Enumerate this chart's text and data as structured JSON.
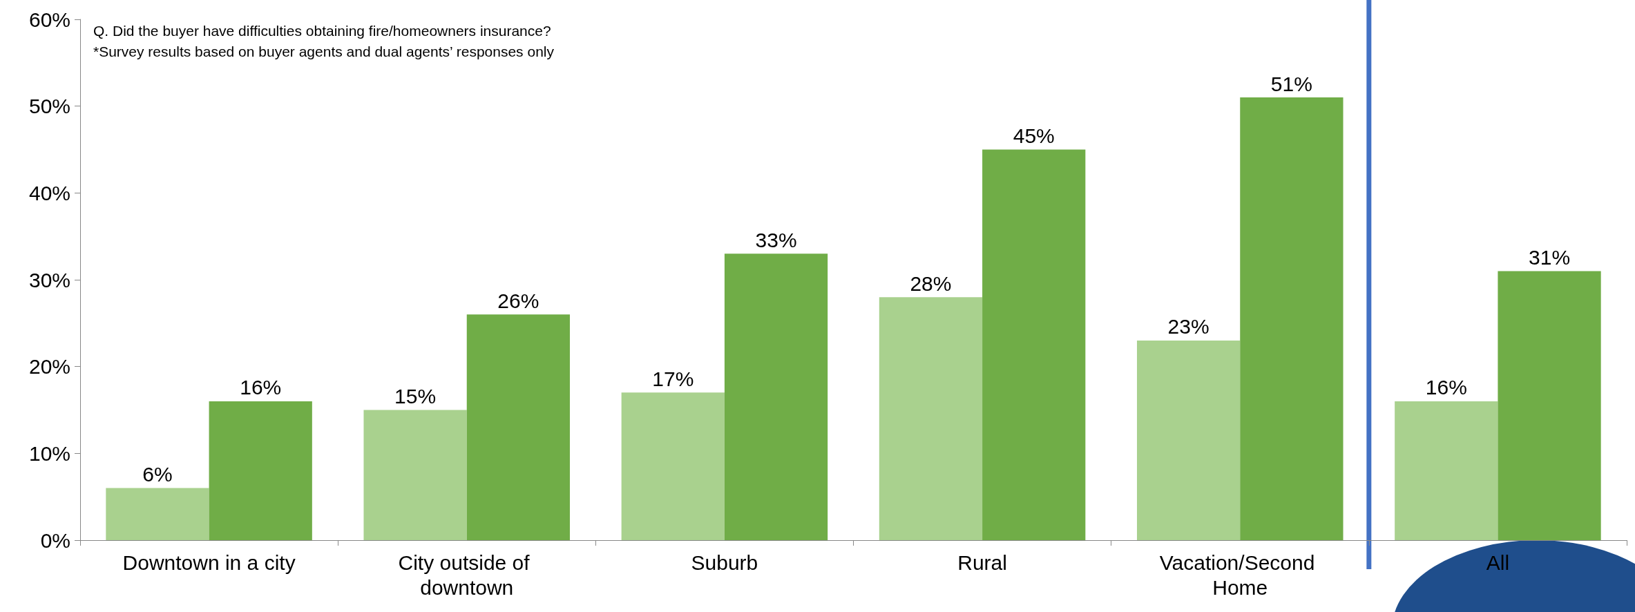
{
  "chart_data": {
    "type": "bar",
    "categories": [
      "Downtown in a city",
      "City outside of downtown",
      "Suburb",
      "Rural",
      "Vacation/Second Home",
      "All"
    ],
    "series": [
      {
        "color": "#a9d18e",
        "values": [
          6,
          15,
          17,
          28,
          23,
          16
        ],
        "value_labels": [
          "6%",
          "15%",
          "17%",
          "28%",
          "23%",
          "16%"
        ]
      },
      {
        "color": "#70ad47",
        "values": [
          16,
          26,
          33,
          45,
          51,
          31
        ],
        "value_labels": [
          "16%",
          "26%",
          "33%",
          "45%",
          "51%",
          "31%"
        ]
      }
    ],
    "ylim": [
      0,
      60
    ],
    "yticks": [
      {
        "value": 0,
        "label": "0%"
      },
      {
        "value": 10,
        "label": "10%"
      },
      {
        "value": 20,
        "label": "20%"
      },
      {
        "value": 30,
        "label": "30%"
      },
      {
        "value": 40,
        "label": "40%"
      },
      {
        "value": 50,
        "label": "50%"
      },
      {
        "value": 60,
        "label": "60%"
      }
    ],
    "ref_lines": [
      {
        "axis": "x",
        "value": "All",
        "color": "#4472c4"
      }
    ],
    "annotations": [
      "Q. Did the buyer have difficulties obtaining fire/homeowners insurance?",
      "*Survey results based on buyer agents and dual agents’ responses only"
    ],
    "grid": false
  }
}
